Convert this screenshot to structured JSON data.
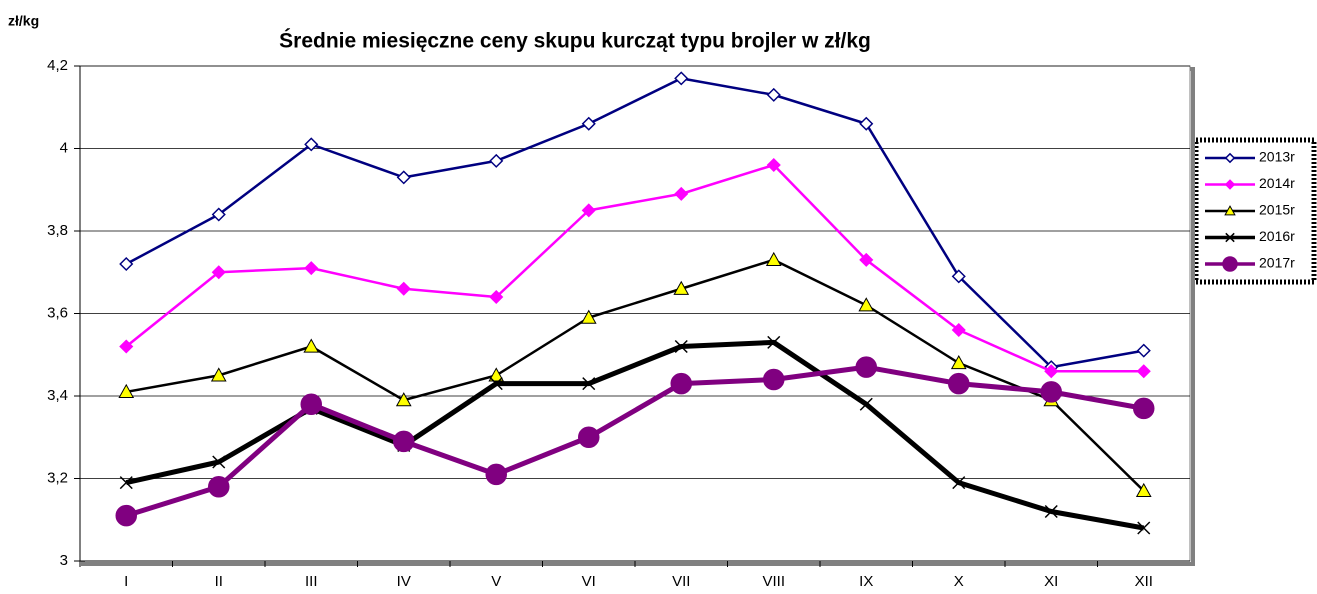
{
  "chart_data": {
    "type": "line",
    "title": "Średnie miesięczne ceny skupu kurcząt typu brojler w zł/kg",
    "y_label": "zł/kg",
    "categories": [
      "I",
      "II",
      "III",
      "IV",
      "V",
      "VI",
      "VII",
      "VIII",
      "IX",
      "X",
      "XI",
      "XII"
    ],
    "ylim": [
      3,
      4.2
    ],
    "yticks": [
      3,
      {
        "value": 3.2,
        "label": "3,2"
      },
      {
        "value": 3.4,
        "label": "3,4"
      },
      {
        "value": 3.6,
        "label": "3,6"
      },
      {
        "value": 3.8,
        "label": "3,8"
      },
      4,
      {
        "value": 4.2,
        "label": "4,2"
      }
    ],
    "grid": true,
    "legend": "right",
    "series": [
      {
        "name": "2013r",
        "color": "#000080",
        "marker": "diamond-open",
        "marker_fill": "#ffffff",
        "line_width": 2.5,
        "values": [
          3.72,
          3.84,
          4.01,
          3.93,
          3.97,
          4.06,
          4.17,
          4.13,
          4.06,
          3.69,
          3.47,
          3.51
        ]
      },
      {
        "name": "2014r",
        "color": "#ff00ff",
        "marker": "diamond",
        "marker_fill": "#ff00ff",
        "line_width": 2.5,
        "values": [
          3.52,
          3.7,
          3.71,
          3.66,
          3.64,
          3.85,
          3.89,
          3.96,
          3.73,
          3.56,
          3.46,
          3.46
        ]
      },
      {
        "name": "2015r",
        "color": "#000000",
        "marker": "triangle",
        "marker_fill": "#ffff00",
        "line_width": 2.5,
        "values": [
          3.41,
          3.45,
          3.52,
          3.39,
          3.45,
          3.59,
          3.66,
          3.73,
          3.62,
          3.48,
          3.39,
          3.17
        ]
      },
      {
        "name": "2016r",
        "color": "#000000",
        "marker": "x",
        "marker_fill": "#000000",
        "line_width": 5,
        "values": [
          3.19,
          3.24,
          3.37,
          3.28,
          3.43,
          3.43,
          3.52,
          3.53,
          3.38,
          3.19,
          3.12,
          3.08
        ]
      },
      {
        "name": "2017r",
        "color": "#800080",
        "marker": "circle",
        "marker_fill": "#800080",
        "line_width": 5,
        "values": [
          3.11,
          3.18,
          3.38,
          3.29,
          3.21,
          3.3,
          3.43,
          3.44,
          3.47,
          3.43,
          3.41,
          3.37
        ]
      }
    ]
  }
}
